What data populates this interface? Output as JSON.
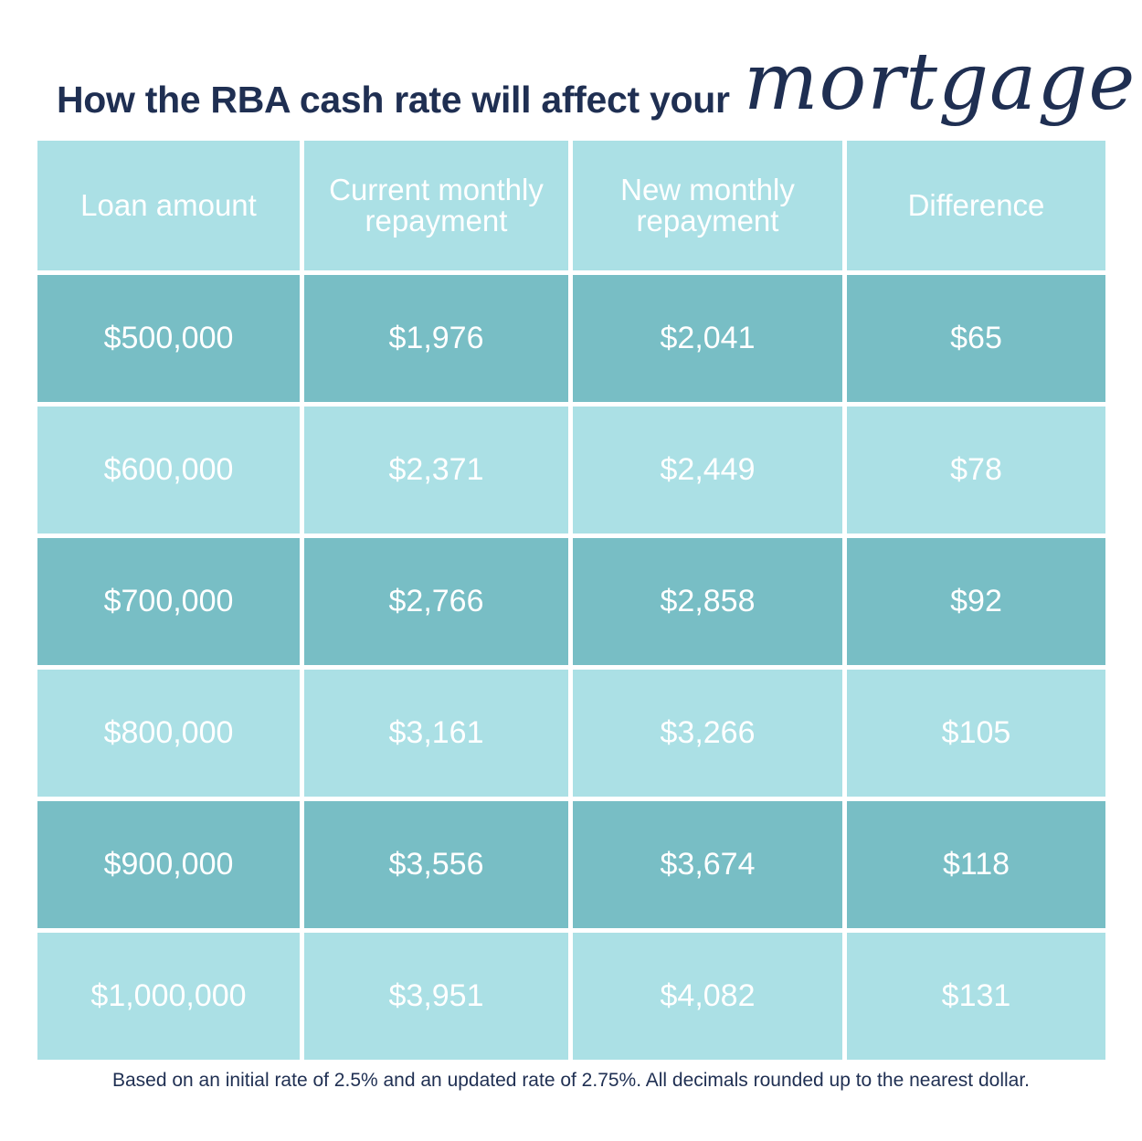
{
  "title": "How the RBA cash rate will affect your",
  "title_script": "mortgage",
  "colors": {
    "title": "#1f2f52",
    "light_cell": "#abe0e5",
    "dark_cell": "#78bec5",
    "cell_text": "#ffffff"
  },
  "chart_data": {
    "type": "table",
    "columns": [
      "Loan amount",
      "Current monthly repayment",
      "New monthly repayment",
      "Difference"
    ],
    "rows": [
      [
        "$500,000",
        "$1,976",
        "$2,041",
        "$65"
      ],
      [
        "$600,000",
        "$2,371",
        "$2,449",
        "$78"
      ],
      [
        "$700,000",
        "$2,766",
        "$2,858",
        "$92"
      ],
      [
        "$800,000",
        "$3,161",
        "$3,266",
        "$105"
      ],
      [
        "$900,000",
        "$3,556",
        "$3,674",
        "$118"
      ],
      [
        "$1,000,000",
        "$3,951",
        "$4,082",
        "$131"
      ]
    ]
  },
  "footnote": "Based on an initial rate of 2.5% and an updated rate of 2.75%. All decimals rounded up to the nearest dollar."
}
